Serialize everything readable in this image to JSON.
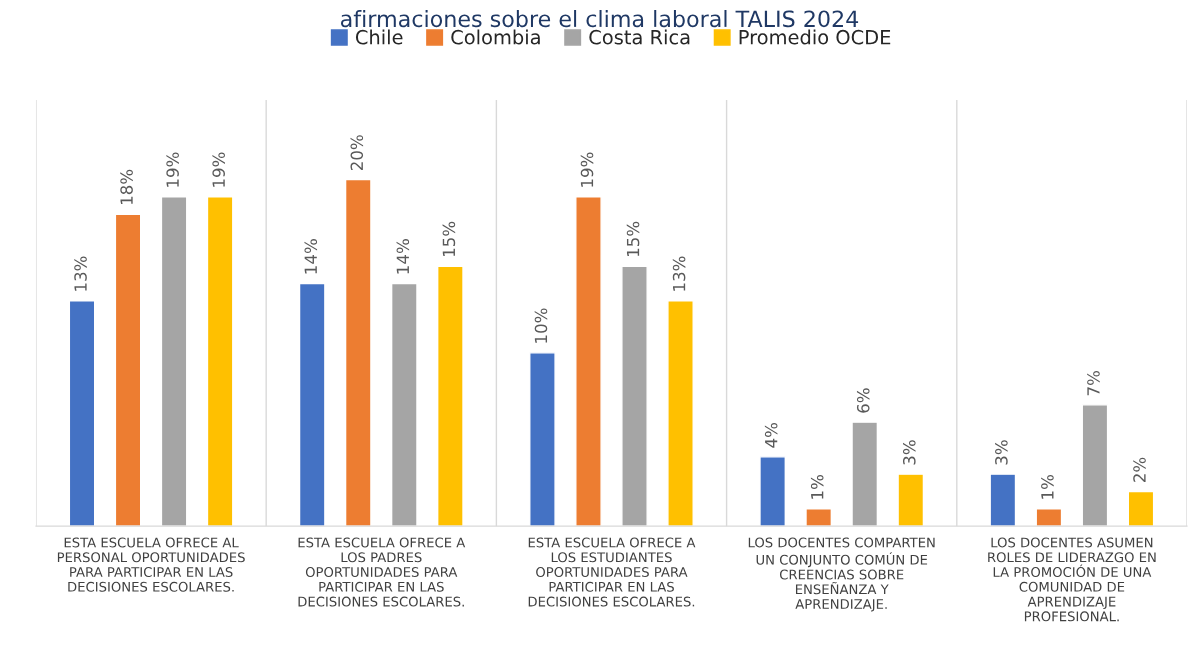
{
  "chart_data": {
    "type": "bar",
    "title": "afirmaciones sobre el clima laboral TALIS 2024",
    "categories": [
      "ESTA ESCUELA OFRECE AL PERSONAL OPORTUNIDADES PARA PARTICIPAR EN LAS DECISIONES ESCOLARES.",
      "ESTA ESCUELA OFRECE A LOS PADRES OPORTUNIDADES PARA PARTICIPAR EN LAS DECISIONES ESCOLARES.",
      "ESTA ESCUELA OFRECE A LOS ESTUDIANTES OPORTUNIDADES PARA PARTICIPAR EN LAS DECISIONES ESCOLARES.",
      "LOS DOCENTES COMPARTEN UN CONJUNTO COMÚN DE CREENCIAS SOBRE ENSEÑANZA Y APRENDIZAJE.",
      "LOS DOCENTES ASUMEN ROLES DE LIDERAZGO EN LA PROMOCIÓN DE UNA COMUNIDAD DE APRENDIZAJE PROFESIONAL."
    ],
    "series": [
      {
        "name": "Chile",
        "color": "#4472c4",
        "values": [
          13,
          14,
          10,
          4,
          3
        ],
        "value_labels": [
          "13%",
          "14%",
          "10%",
          "4%",
          "3%"
        ]
      },
      {
        "name": "Colombia",
        "color": "#ed7d31",
        "values": [
          18,
          20,
          19,
          1,
          1
        ],
        "value_labels": [
          "18%",
          "20%",
          "19%",
          "1%",
          "1%"
        ]
      },
      {
        "name": "Costa Rica",
        "color": "#a5a5a5",
        "values": [
          19,
          14,
          15,
          6,
          7
        ],
        "value_labels": [
          "19%",
          "14%",
          "15%",
          "6%",
          "7%"
        ]
      },
      {
        "name": "Promedio OCDE",
        "color": "#ffc000",
        "values": [
          19,
          15,
          13,
          3,
          2
        ],
        "value_labels": [
          "19%",
          "15%",
          "13%",
          "3%",
          "2%"
        ]
      }
    ],
    "legend": "top",
    "grid": "x"
  }
}
